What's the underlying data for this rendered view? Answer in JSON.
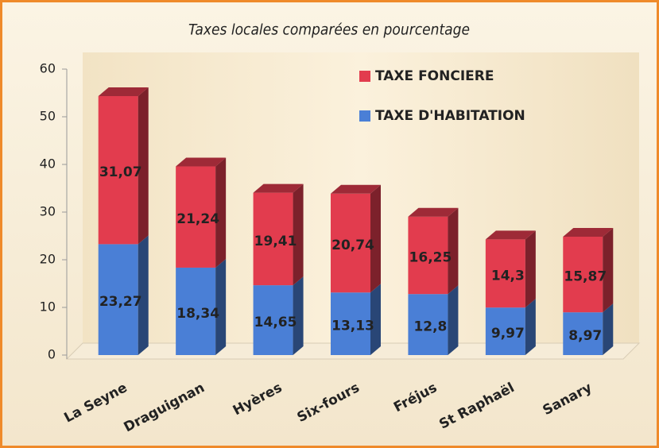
{
  "chart_data": {
    "type": "stacked_bar_3d",
    "title": "Taxes locales comparées en pourcentage",
    "categories": [
      "La Seyne",
      "Draguignan",
      "Hyères",
      "Six-fours",
      "Fréjus",
      "St Raphaël",
      "Sanary"
    ],
    "series": [
      {
        "name": "TAXE D'HABITATION",
        "color": "#4a7fd6",
        "values": [
          23.27,
          18.34,
          14.65,
          13.13,
          12.8,
          9.97,
          8.97
        ],
        "value_labels": [
          "23,27",
          "18,34",
          "14,65",
          "13,13",
          "12,8",
          "9,97",
          "8,97"
        ]
      },
      {
        "name": "TAXE FONCIERE",
        "color": "#e23c4e",
        "values": [
          31.07,
          21.24,
          19.41,
          20.74,
          16.25,
          14.3,
          15.87
        ],
        "value_labels": [
          "31,07",
          "21,24",
          "19,41",
          "20,74",
          "16,25",
          "14,3",
          "15,87"
        ]
      }
    ],
    "ylim": [
      0,
      60
    ],
    "yticks": [
      0,
      10,
      20,
      30,
      40,
      50,
      60
    ]
  }
}
